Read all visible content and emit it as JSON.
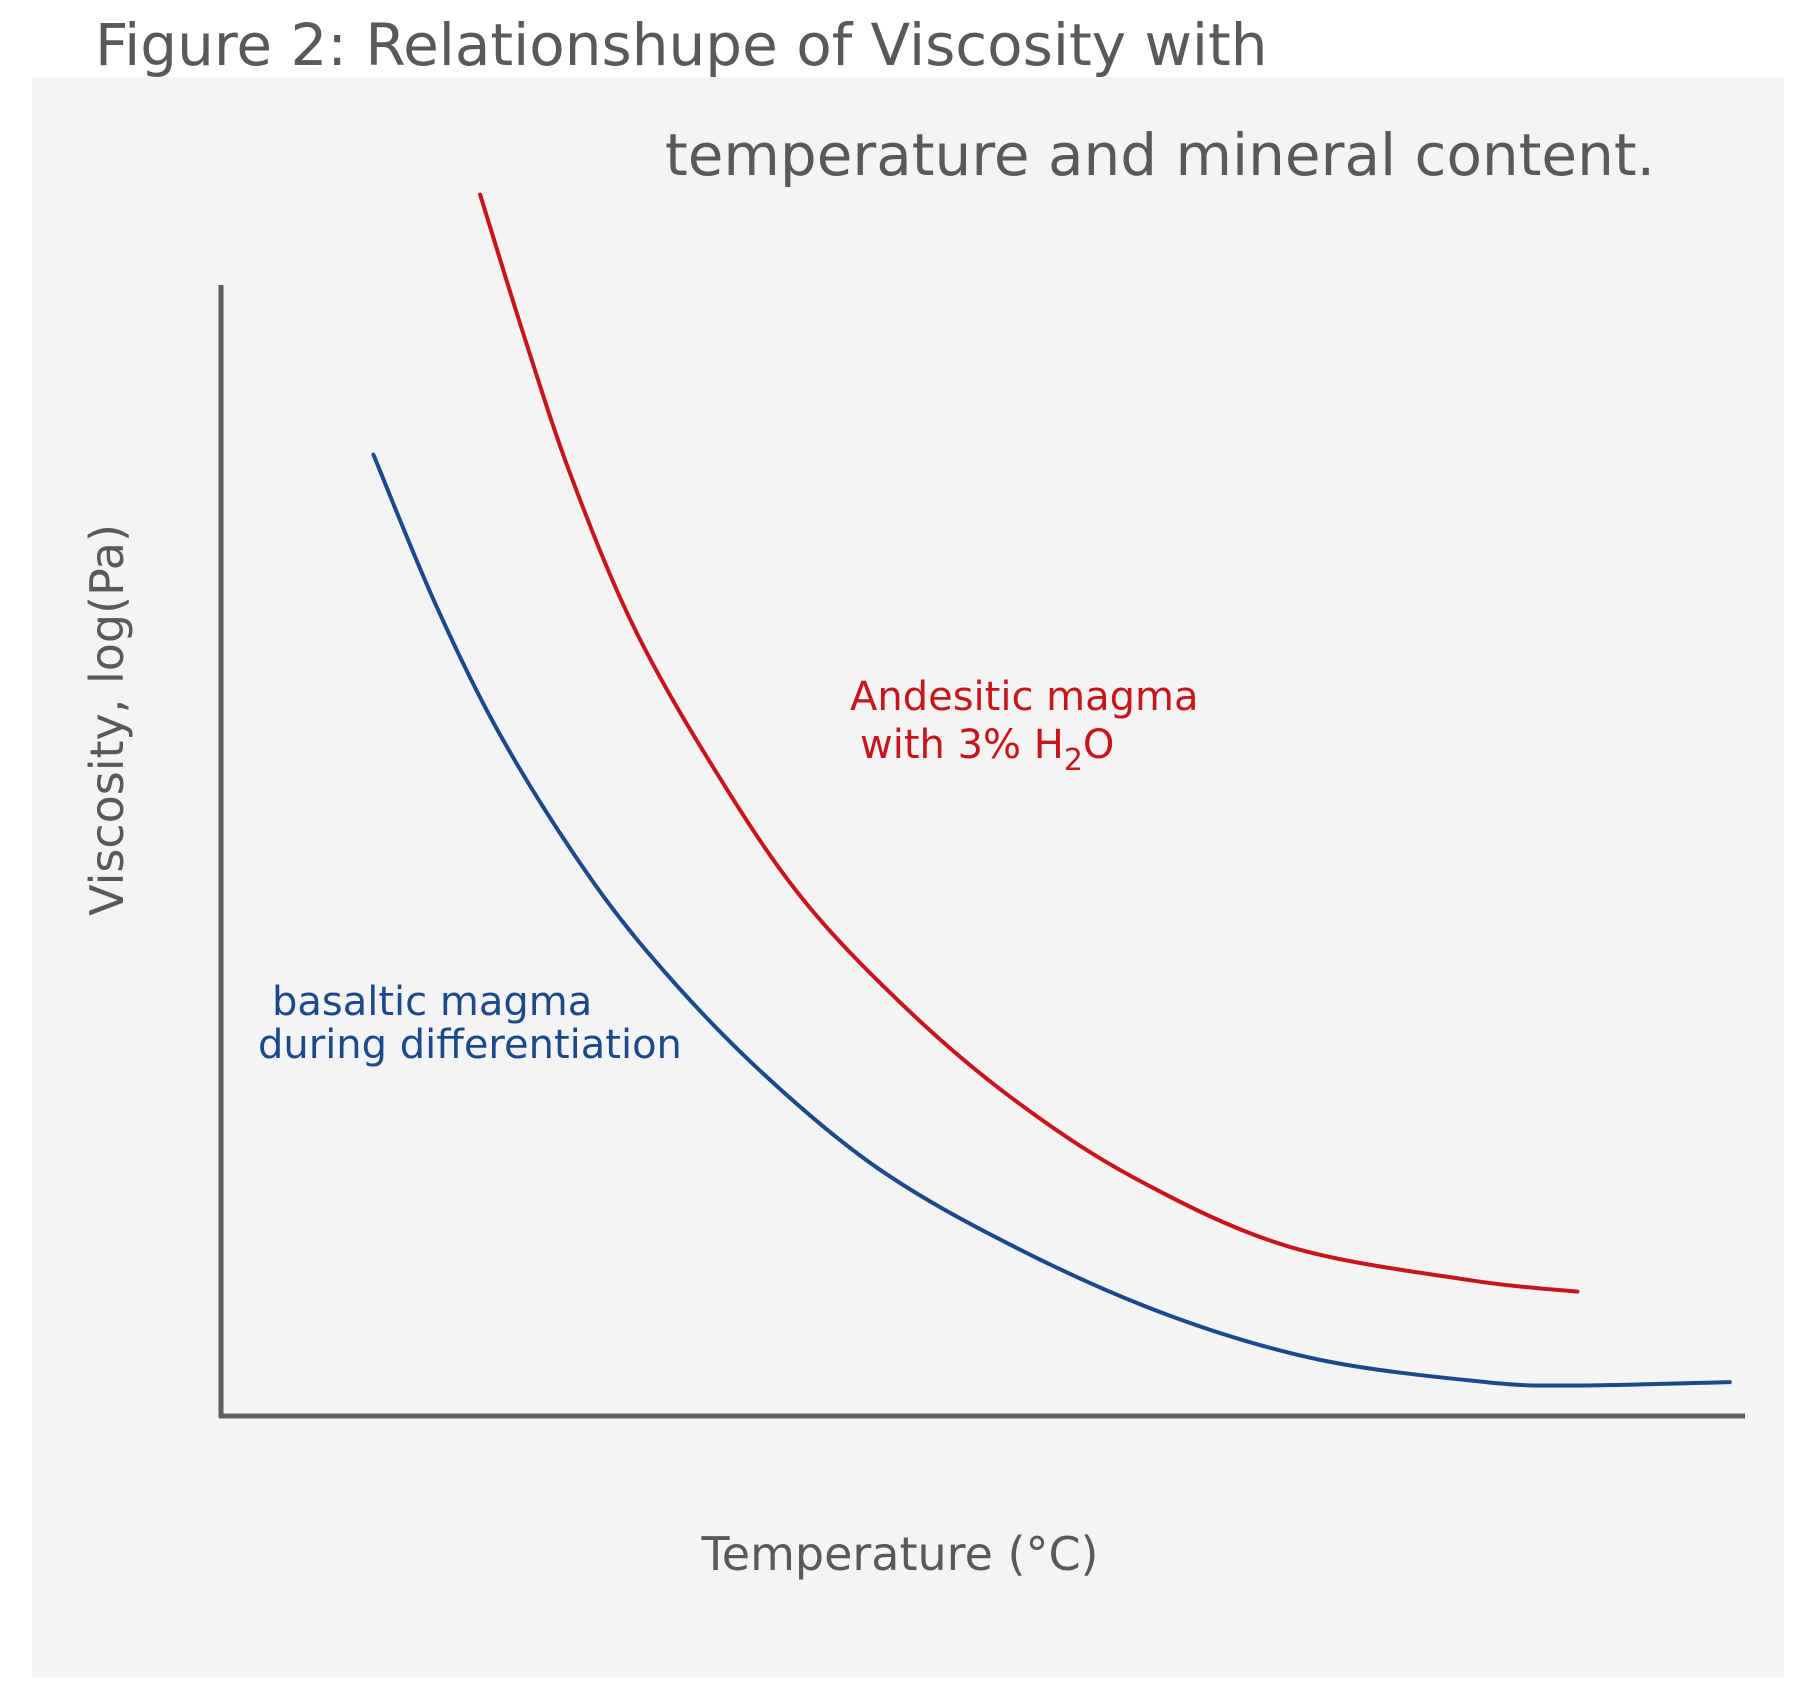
{
  "figure": {
    "title_line1": "Figure 2: Relationshupe of Viscosity with",
    "title_line2": "temperature and mineral content."
  },
  "colors": {
    "background": "#ffffff",
    "panel": "#f4f4f4",
    "axis": "#606060",
    "text": "#595959",
    "andesitic": "#c8151b",
    "basaltic": "#1a4a8c"
  },
  "chart_data": {
    "type": "line",
    "title": "Figure 2: Relationshupe of Viscosity with temperature and mineral content.",
    "xlabel": "Temperature (°C)",
    "ylabel": "Viscosity, log(Pa)",
    "x_ticks": [],
    "y_ticks": [],
    "grid": false,
    "legend": "none",
    "xlim": [
      0,
      100
    ],
    "ylim": [
      0,
      100
    ],
    "series": [
      {
        "name": "Andesitic magma with 3% H2O",
        "label_line1": "Andesitic magma",
        "label_line2_prefix": "with 3% H",
        "label_line2_sub": "2",
        "label_line2_suffix": "O",
        "color": "#c8151b",
        "x": [
          17,
          20,
          23,
          27,
          32,
          38,
          45,
          52,
          60,
          70,
          82,
          89
        ],
        "y": [
          108,
          95,
          83,
          70,
          58,
          46,
          36,
          28,
          21,
          15,
          12,
          11
        ]
      },
      {
        "name": "basaltic magma during differentiation",
        "label_line1": "basaltic magma",
        "label_line2": "during differentiation",
        "color": "#1a4a8c",
        "x": [
          10,
          14,
          18,
          23,
          28,
          35,
          43,
          52,
          62,
          72,
          83,
          89,
          99
        ],
        "y": [
          85,
          72,
          61,
          50,
          41,
          31,
          22,
          15,
          9,
          5,
          3,
          2.7,
          3
        ]
      }
    ]
  }
}
